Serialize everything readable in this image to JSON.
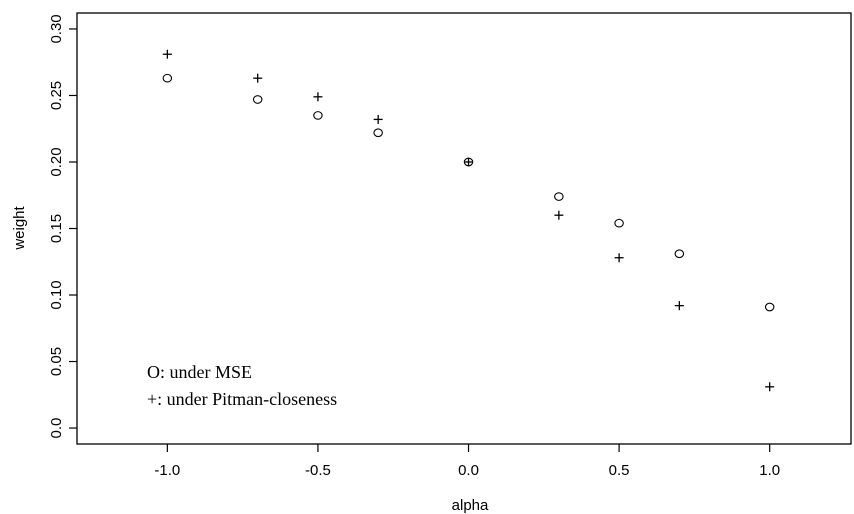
{
  "chart_data": {
    "type": "scatter",
    "title": "",
    "xlabel": "alpha",
    "ylabel": "weight",
    "xlim": [
      -1.3,
      1.27
    ],
    "ylim": [
      -0.012,
      0.312
    ],
    "x_ticks": [
      -1.0,
      -0.5,
      0.0,
      0.5,
      1.0
    ],
    "x_tick_labels": [
      "-1.0",
      "-0.5",
      "0.0",
      "0.5",
      "1.0"
    ],
    "y_ticks": [
      0.0,
      0.05,
      0.1,
      0.15,
      0.2,
      0.25,
      0.3
    ],
    "y_tick_labels": [
      "0.0",
      "0.05",
      "0.10",
      "0.15",
      "0.20",
      "0.25",
      "0.30"
    ],
    "grid": false,
    "legend": {
      "placement": "bottom-left",
      "entries": [
        "O: under MSE",
        "+: under Pitman-closeness"
      ]
    },
    "series": [
      {
        "marker": "circle",
        "points": [
          {
            "x": -1.0,
            "y": 0.263
          },
          {
            "x": -0.7,
            "y": 0.247
          },
          {
            "x": -0.5,
            "y": 0.235
          },
          {
            "x": -0.3,
            "y": 0.222
          },
          {
            "x": 0.0,
            "y": 0.2
          },
          {
            "x": 0.3,
            "y": 0.174
          },
          {
            "x": 0.5,
            "y": 0.154
          },
          {
            "x": 0.7,
            "y": 0.131
          },
          {
            "x": 1.0,
            "y": 0.091
          }
        ]
      },
      {
        "marker": "plus",
        "points": [
          {
            "x": -1.0,
            "y": 0.281
          },
          {
            "x": -0.7,
            "y": 0.263
          },
          {
            "x": -0.5,
            "y": 0.249
          },
          {
            "x": -0.3,
            "y": 0.232
          },
          {
            "x": 0.0,
            "y": 0.2
          },
          {
            "x": 0.3,
            "y": 0.16
          },
          {
            "x": 0.5,
            "y": 0.128
          },
          {
            "x": 0.7,
            "y": 0.092
          },
          {
            "x": 1.0,
            "y": 0.031
          }
        ]
      }
    ]
  }
}
